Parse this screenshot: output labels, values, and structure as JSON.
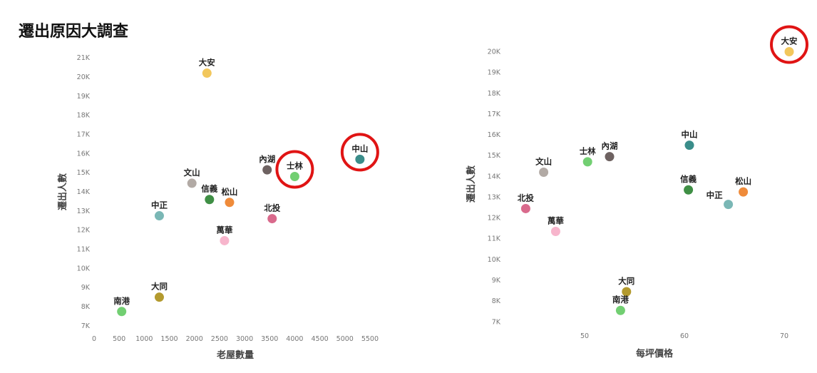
{
  "page_title": "遷出原因大調查",
  "chart_data": [
    {
      "type": "scatter",
      "xlabel": "老屋數量",
      "ylabel": "遷出人數",
      "xlim": [
        0,
        5700
      ],
      "ylim": [
        6700,
        21300
      ],
      "xticks": [
        0,
        500,
        1000,
        1500,
        2000,
        2500,
        3000,
        3500,
        4000,
        4500,
        5000,
        5500
      ],
      "xtick_labels": [
        "0",
        "500",
        "1000",
        "1500",
        "2000",
        "2500",
        "3000",
        "3500",
        "4000",
        "4500",
        "5000",
        "5500"
      ],
      "yticks": [
        7000,
        8000,
        9000,
        10000,
        11000,
        12000,
        13000,
        14000,
        15000,
        16000,
        17000,
        18000,
        19000,
        20000,
        21000
      ],
      "ytick_labels": [
        "7K",
        "8K",
        "9K",
        "10K",
        "11K",
        "12K",
        "13K",
        "14K",
        "15K",
        "16K",
        "17K",
        "18K",
        "19K",
        "20K",
        "21K"
      ],
      "grid": false,
      "points": [
        {
          "name": "大安",
          "x": 2250,
          "y": 20200,
          "color": "#f2c75c",
          "label_pos": "above"
        },
        {
          "name": "中山",
          "x": 5300,
          "y": 15700,
          "color": "#3a8d8a",
          "label_pos": "above",
          "highlighted": true
        },
        {
          "name": "士林",
          "x": 4000,
          "y": 14800,
          "color": "#72cf72",
          "label_pos": "above",
          "highlighted": true
        },
        {
          "name": "內湖",
          "x": 3450,
          "y": 15150,
          "color": "#6e6261",
          "label_pos": "above"
        },
        {
          "name": "文山",
          "x": 1950,
          "y": 14450,
          "color": "#b2aaa5",
          "label_pos": "above"
        },
        {
          "name": "信義",
          "x": 2300,
          "y": 13600,
          "color": "#3f8f45",
          "label_pos": "above"
        },
        {
          "name": "松山",
          "x": 2700,
          "y": 13450,
          "color": "#ef8b3a",
          "label_pos": "above"
        },
        {
          "name": "中正",
          "x": 1300,
          "y": 12750,
          "color": "#7ab7b5",
          "label_pos": "above"
        },
        {
          "name": "北投",
          "x": 3550,
          "y": 12600,
          "color": "#d96a8c",
          "label_pos": "above"
        },
        {
          "name": "萬華",
          "x": 2600,
          "y": 11450,
          "color": "#f7b5cc",
          "label_pos": "above"
        },
        {
          "name": "大同",
          "x": 1300,
          "y": 8500,
          "color": "#b39a2e",
          "label_pos": "above"
        },
        {
          "name": "南港",
          "x": 550,
          "y": 7750,
          "color": "#72cf72",
          "label_pos": "above"
        }
      ]
    },
    {
      "type": "scatter",
      "xlabel": "每坪價格",
      "ylabel": "遷出人數",
      "xlim": [
        42,
        72
      ],
      "ylim": [
        6700,
        20600
      ],
      "xticks": [
        50,
        60,
        70
      ],
      "xtick_labels": [
        "50",
        "60",
        "70"
      ],
      "yticks": [
        7000,
        8000,
        9000,
        10000,
        11000,
        12000,
        13000,
        14000,
        15000,
        16000,
        17000,
        18000,
        19000,
        20000
      ],
      "ytick_labels": [
        "7K",
        "8K",
        "9K",
        "10K",
        "11K",
        "12K",
        "13K",
        "14K",
        "15K",
        "16K",
        "17K",
        "18K",
        "19K",
        "20K"
      ],
      "grid": false,
      "points": [
        {
          "name": "大安",
          "x": 70.5,
          "y": 20000,
          "color": "#f2c75c",
          "label_pos": "above",
          "highlighted": true
        },
        {
          "name": "中山",
          "x": 60.5,
          "y": 15500,
          "color": "#3a8d8a",
          "label_pos": "above"
        },
        {
          "name": "內湖",
          "x": 52.5,
          "y": 14950,
          "color": "#6e6261",
          "label_pos": "above"
        },
        {
          "name": "士林",
          "x": 50.3,
          "y": 14700,
          "color": "#72cf72",
          "label_pos": "above"
        },
        {
          "name": "文山",
          "x": 45.9,
          "y": 14200,
          "color": "#b2aaa5",
          "label_pos": "above"
        },
        {
          "name": "信義",
          "x": 60.4,
          "y": 13350,
          "color": "#3f8f45",
          "label_pos": "above"
        },
        {
          "name": "松山",
          "x": 65.9,
          "y": 13250,
          "color": "#ef8b3a",
          "label_pos": "above"
        },
        {
          "name": "中正",
          "x": 64.4,
          "y": 12650,
          "color": "#7ab7b5",
          "label_pos": "above-left"
        },
        {
          "name": "北投",
          "x": 44.1,
          "y": 12450,
          "color": "#d96a8c",
          "label_pos": "above"
        },
        {
          "name": "萬華",
          "x": 47.1,
          "y": 11350,
          "color": "#f7b5cc",
          "label_pos": "above"
        },
        {
          "name": "大同",
          "x": 54.2,
          "y": 8450,
          "color": "#b39a2e",
          "label_pos": "above"
        },
        {
          "name": "南港",
          "x": 53.6,
          "y": 7550,
          "color": "#72cf72",
          "label_pos": "above"
        }
      ]
    }
  ]
}
